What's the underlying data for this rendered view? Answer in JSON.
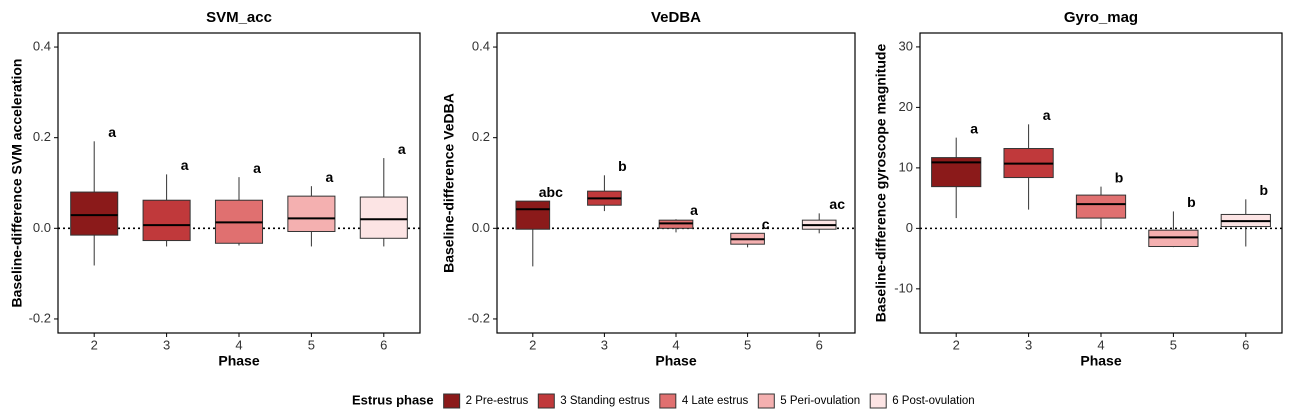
{
  "chart_data": [
    {
      "type": "box",
      "title": "SVM_acc",
      "x_label": "Phase",
      "y_label": "Baseline-difference SVM acceleration",
      "categories": [
        "2",
        "3",
        "4",
        "5",
        "6"
      ],
      "boxes": [
        {
          "whisker_low": -0.082,
          "q1": -0.015,
          "median": 0.029,
          "q3": 0.08,
          "whisker_high": 0.192,
          "letter": "a"
        },
        {
          "whisker_low": -0.04,
          "q1": -0.027,
          "median": 0.007,
          "q3": 0.062,
          "whisker_high": 0.119,
          "letter": "a"
        },
        {
          "whisker_low": -0.038,
          "q1": -0.033,
          "median": 0.013,
          "q3": 0.062,
          "whisker_high": 0.113,
          "letter": "a"
        },
        {
          "whisker_low": -0.04,
          "q1": -0.007,
          "median": 0.022,
          "q3": 0.071,
          "whisker_high": 0.093,
          "letter": "a"
        },
        {
          "whisker_low": -0.04,
          "q1": -0.022,
          "median": 0.02,
          "q3": 0.069,
          "whisker_high": 0.155,
          "letter": "a"
        }
      ],
      "ylim": [
        -0.231,
        0.431
      ],
      "yticks": [
        -0.2,
        {
          "value": 0,
          "label": "0.0"
        },
        0.2,
        0.4
      ],
      "reference_line": 0
    },
    {
      "type": "box",
      "title": "VeDBA",
      "x_label": "Phase",
      "y_label": "Baseline-difference VeDBA",
      "categories": [
        "2",
        "3",
        "4",
        "5",
        "6"
      ],
      "boxes": [
        {
          "whisker_low": -0.084,
          "q1": -0.002,
          "median": 0.042,
          "q3": 0.06,
          "whisker_high": 0.06,
          "letter": "abc"
        },
        {
          "whisker_low": 0.038,
          "q1": 0.051,
          "median": 0.066,
          "q3": 0.082,
          "whisker_high": 0.117,
          "letter": "b"
        },
        {
          "whisker_low": -0.009,
          "q1": 0.0,
          "median": 0.011,
          "q3": 0.018,
          "whisker_high": 0.02,
          "letter": "a"
        },
        {
          "whisker_low": -0.042,
          "q1": -0.035,
          "median": -0.024,
          "q3": -0.011,
          "whisker_high": -0.011,
          "letter": "c"
        },
        {
          "whisker_low": -0.011,
          "q1": -0.002,
          "median": 0.007,
          "q3": 0.018,
          "whisker_high": 0.033,
          "letter": "ac"
        }
      ],
      "ylim": [
        -0.231,
        0.431
      ],
      "yticks": [
        -0.2,
        {
          "value": 0,
          "label": "0.0"
        },
        0.2,
        0.4
      ],
      "reference_line": 0
    },
    {
      "type": "box",
      "title": "Gyro_mag",
      "x_label": "Phase",
      "y_label": "Baseline-difference gyroscope magnitude",
      "categories": [
        "2",
        "3",
        "4",
        "5",
        "6"
      ],
      "boxes": [
        {
          "whisker_low": 1.7,
          "q1": 6.9,
          "median": 10.9,
          "q3": 11.7,
          "whisker_high": 15.0,
          "letter": "a"
        },
        {
          "whisker_low": 3.1,
          "q1": 8.4,
          "median": 10.7,
          "q3": 13.2,
          "whisker_high": 17.2,
          "letter": "a"
        },
        {
          "whisker_low": 0,
          "q1": 1.7,
          "median": 4.0,
          "q3": 5.5,
          "whisker_high": 6.9,
          "letter": "b"
        },
        {
          "whisker_low": -3.1,
          "q1": -3.0,
          "median": -1.5,
          "q3": -0.3,
          "whisker_high": 2.8,
          "letter": "b"
        },
        {
          "whisker_low": -3.0,
          "q1": 0.3,
          "median": 1.2,
          "q3": 2.3,
          "whisker_high": 4.8,
          "letter": "b"
        }
      ],
      "ylim": [
        -17.3,
        32.3
      ],
      "yticks": [
        -10,
        0,
        10,
        20,
        30
      ],
      "reference_line": 0
    }
  ],
  "legend": {
    "title": "Estrus phase",
    "entries": [
      {
        "name": "2 Pre-estrus",
        "color": "#8b1a1a"
      },
      {
        "name": "3 Standing estrus",
        "color": "#c0393b"
      },
      {
        "name": "4 Late estrus",
        "color": "#e07070"
      },
      {
        "name": "5 Peri-ovulation",
        "color": "#f4b0b0"
      },
      {
        "name": "6 Post-ovulation",
        "color": "#fce4e4"
      }
    ]
  }
}
